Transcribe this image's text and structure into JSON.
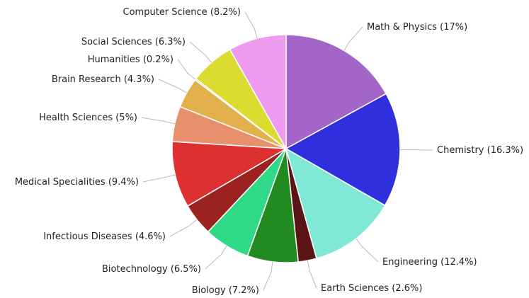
{
  "chart_data": {
    "type": "pie",
    "title": "",
    "slices": [
      {
        "label": "Math & Physics (17%)",
        "value": 17.0,
        "color": "#a366c8"
      },
      {
        "label": "Chemistry (16.3%)",
        "value": 16.3,
        "color": "#2f2fdd"
      },
      {
        "label": "Engineering (12.4%)",
        "value": 12.4,
        "color": "#7fe8d6"
      },
      {
        "label": "Earth Sciences (2.6%)",
        "value": 2.6,
        "color": "#5c1515"
      },
      {
        "label": "Biology (7.2%)",
        "value": 7.2,
        "color": "#218a21"
      },
      {
        "label": "Biotechnology (6.5%)",
        "value": 6.5,
        "color": "#30d987"
      },
      {
        "label": "Infectious Diseases (4.6%)",
        "value": 4.6,
        "color": "#9c2222"
      },
      {
        "label": "Medical Specialities (9.4%)",
        "value": 9.4,
        "color": "#dd3030"
      },
      {
        "label": "Health Sciences (5%)",
        "value": 5.0,
        "color": "#e8906e"
      },
      {
        "label": "Brain Research (4.3%)",
        "value": 4.3,
        "color": "#e2b04c"
      },
      {
        "label": "Humanities (0.2%)",
        "value": 0.2,
        "color": "#b0b0b0"
      },
      {
        "label": "Social Sciences (6.3%)",
        "value": 6.3,
        "color": "#dcdc30"
      },
      {
        "label": "Computer Science (8.2%)",
        "value": 8.2,
        "color": "#ee9aee"
      }
    ]
  }
}
